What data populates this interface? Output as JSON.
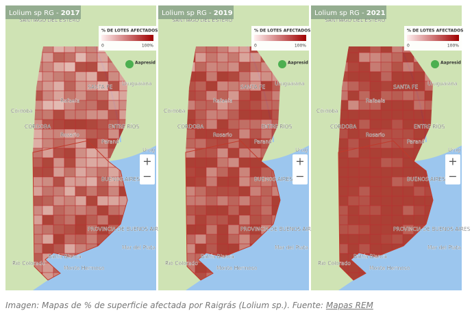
{
  "panels": [
    {
      "title": "Lolium sp RG - ",
      "year": "2017"
    },
    {
      "title": "Lolium sp RG - ",
      "year": "2019"
    },
    {
      "title": "Lolium sp RG - ",
      "year": "2021"
    }
  ],
  "legend": {
    "title": "% DE LOTES AFECTADOS",
    "min": "0",
    "max": "100%",
    "logo": "Aapresid"
  },
  "map_labels": [
    "SANTIAGO DEL ESTERO",
    "CORRIENTES",
    "Uruguaiana",
    "SANTA FE",
    "Rafaela",
    "Córdoba",
    "CÓRDOBA",
    "ENTRE RÍOS",
    "Paraná",
    "Rosario",
    "Urug",
    "BUENOS AIRES",
    "PROVINCIA DE BUENOS AIRES",
    "Mar del Plata",
    "Bahía Blanca",
    "Monte Hermoso",
    "Río Colorado"
  ],
  "zoom": {
    "in": "+",
    "out": "−"
  },
  "caption": {
    "text": "Imagen: Mapas de % de superficie afectada por Raigrás (Lolium sp.). Fuente: ",
    "link": "Mapas REM"
  }
}
